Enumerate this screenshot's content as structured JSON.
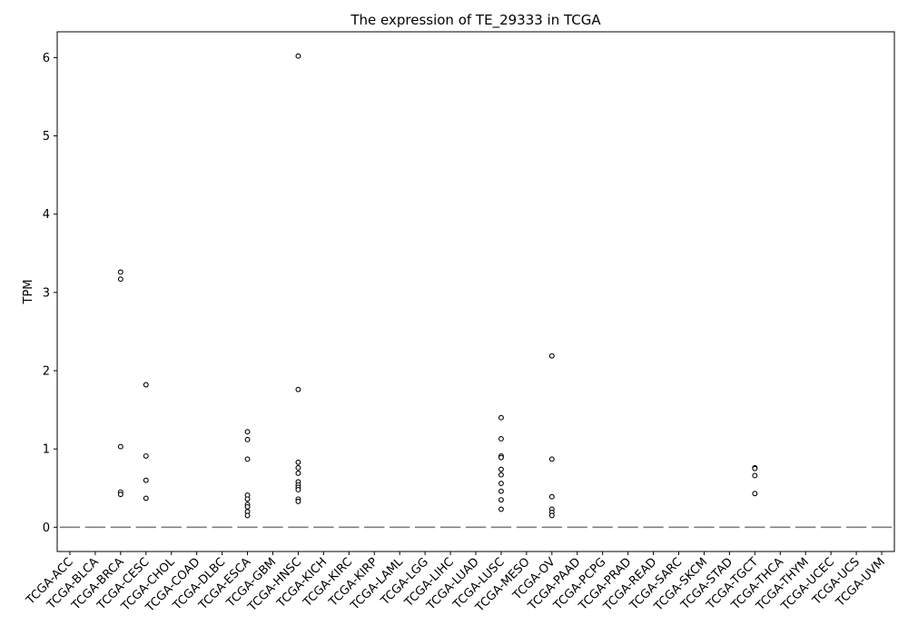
{
  "chart_data": {
    "type": "box",
    "title": "The expression of TE_29333 in TCGA",
    "xlabel": "",
    "ylabel": "TPM",
    "ylim": [
      -0.31,
      6.33
    ],
    "yticks": [
      0,
      1,
      2,
      3,
      4,
      5,
      6
    ],
    "grid": false,
    "categories": [
      "TCGA-ACC",
      "TCGA-BLCA",
      "TCGA-BRCA",
      "TCGA-CESC",
      "TCGA-CHOL",
      "TCGA-COAD",
      "TCGA-DLBC",
      "TCGA-ESCA",
      "TCGA-GBM",
      "TCGA-HNSC",
      "TCGA-KICH",
      "TCGA-KIRC",
      "TCGA-KIRP",
      "TCGA-LAML",
      "TCGA-LGG",
      "TCGA-LIHC",
      "TCGA-LUAD",
      "TCGA-LUSC",
      "TCGA-MESO",
      "TCGA-OV",
      "TCGA-PAAD",
      "TCGA-PCPG",
      "TCGA-PRAD",
      "TCGA-READ",
      "TCGA-SARC",
      "TCGA-SKCM",
      "TCGA-STAD",
      "TCGA-TGCT",
      "TCGA-THCA",
      "TCGA-THYM",
      "TCGA-UCEC",
      "TCGA-UCS",
      "TCGA-UVM"
    ],
    "median": [
      0,
      0,
      0,
      0,
      0,
      0,
      0,
      0,
      0,
      0,
      0,
      0,
      0,
      0,
      0,
      0,
      0,
      0,
      0,
      0,
      0,
      0,
      0,
      0,
      0,
      0,
      0,
      0,
      0,
      0,
      0,
      0,
      0
    ],
    "outliers": {
      "TCGA-BRCA": [
        3.26,
        3.17,
        1.03,
        0.45,
        0.42
      ],
      "TCGA-CESC": [
        1.82,
        0.91,
        0.6,
        0.37
      ],
      "TCGA-ESCA": [
        1.22,
        1.12,
        0.87,
        0.41,
        0.36,
        0.29,
        0.26,
        0.2,
        0.15
      ],
      "TCGA-HNSC": [
        6.02,
        1.76,
        0.83,
        0.76,
        0.69,
        0.58,
        0.54,
        0.51,
        0.48,
        0.36,
        0.33
      ],
      "TCGA-LUSC": [
        1.4,
        1.13,
        0.91,
        0.89,
        0.74,
        0.67,
        0.56,
        0.46,
        0.35,
        0.23
      ],
      "TCGA-OV": [
        2.19,
        0.87,
        0.39,
        0.23,
        0.19,
        0.15
      ],
      "TCGA-TGCT": [
        0.76,
        0.75,
        0.66,
        0.43
      ]
    },
    "colors": {
      "median": "#7f7f7f",
      "box": "#808080",
      "outlier_edge": "#000000",
      "axis": "#000000"
    }
  }
}
